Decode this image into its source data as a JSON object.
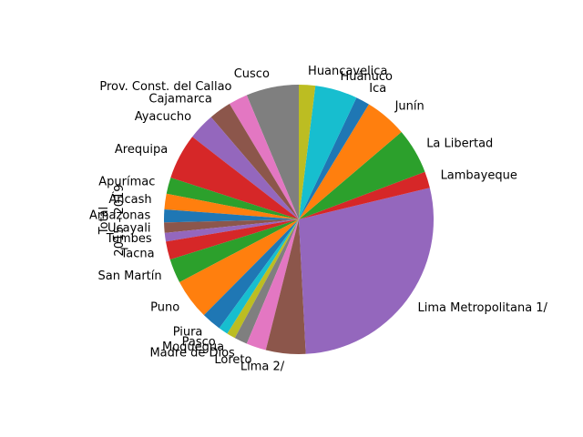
{
  "chart_data": {
    "type": "pie",
    "ylabel_lines": [
      "Total",
      "2015 - 2019"
    ],
    "start_angle_deg": 90,
    "counterclockwise": true,
    "slices": [
      {
        "label": "Cusco",
        "value": 6.1,
        "color": "#7f7f7f"
      },
      {
        "label": "Prov. Const. del Callao",
        "value": 2.2,
        "color": "#e377c2"
      },
      {
        "label": "Cajamarca",
        "value": 2.6,
        "color": "#8c564b"
      },
      {
        "label": "Ayacucho",
        "value": 3.1,
        "color": "#9467bd"
      },
      {
        "label": "Arequipa",
        "value": 5.3,
        "color": "#d62728"
      },
      {
        "label": "Apurímac",
        "value": 1.9,
        "color": "#2ca02c"
      },
      {
        "label": "Áncash",
        "value": 1.8,
        "color": "#ff7f0e"
      },
      {
        "label": "Amazonas",
        "value": 1.5,
        "color": "#1f77b4"
      },
      {
        "label": "Ucayali",
        "value": 1.2,
        "color": "#8c564b"
      },
      {
        "label": "Tumbes",
        "value": 1.0,
        "color": "#9467bd"
      },
      {
        "label": "Tacna",
        "value": 2.1,
        "color": "#d62728"
      },
      {
        "label": "San Martín",
        "value": 2.8,
        "color": "#2ca02c"
      },
      {
        "label": "Puno",
        "value": 4.7,
        "color": "#ff7f0e"
      },
      {
        "label": "Piura",
        "value": 2.3,
        "color": "#1f77b4"
      },
      {
        "label": "Pasco",
        "value": 1.1,
        "color": "#17becf"
      },
      {
        "label": "Moquegua",
        "value": 1.0,
        "color": "#bcbd22"
      },
      {
        "label": "Madre de Dios",
        "value": 1.5,
        "color": "#7f7f7f"
      },
      {
        "label": "Loreto",
        "value": 2.3,
        "color": "#e377c2"
      },
      {
        "label": "Lima 2/",
        "value": 4.6,
        "color": "#8c564b"
      },
      {
        "label": "Lima Metropolitana 1/",
        "value": 27.0,
        "color": "#9467bd"
      },
      {
        "label": "Lambayeque",
        "value": 1.9,
        "color": "#d62728"
      },
      {
        "label": "La Libertad",
        "value": 5.3,
        "color": "#2ca02c"
      },
      {
        "label": "Junín",
        "value": 4.9,
        "color": "#ff7f0e"
      },
      {
        "label": "Ica",
        "value": 1.6,
        "color": "#1f77b4"
      },
      {
        "label": "Huánuco",
        "value": 4.9,
        "color": "#17becf"
      },
      {
        "label": "Huancavelica",
        "value": 1.9,
        "color": "#bcbd22"
      }
    ]
  }
}
